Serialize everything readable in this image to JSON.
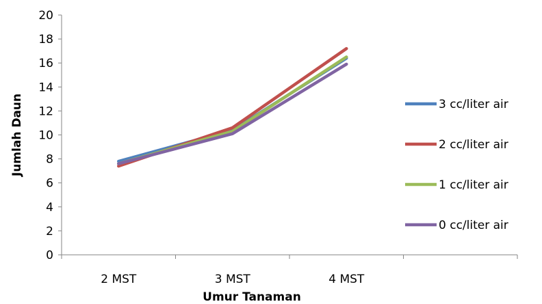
{
  "chart_data": {
    "type": "line",
    "title": "",
    "xlabel": "Umur Tanaman",
    "ylabel": "Jumlah Daun",
    "categories": [
      "2 MST",
      "3 MST",
      "4 MST"
    ],
    "ylim": [
      0,
      20
    ],
    "yticks": [
      0,
      2,
      4,
      6,
      8,
      10,
      12,
      14,
      16,
      18,
      20
    ],
    "grid": false,
    "legend_position": "right",
    "series": [
      {
        "name": "3 cc/liter air",
        "color": "#4f81bd",
        "values": [
          7.8,
          10.4,
          16.4
        ]
      },
      {
        "name": "2 cc/liter air",
        "color": "#c0504d",
        "values": [
          7.4,
          10.6,
          17.2
        ]
      },
      {
        "name": "1 cc/liter air",
        "color": "#9bbb59",
        "values": [
          7.6,
          10.3,
          16.5
        ]
      },
      {
        "name": "0 cc/liter air",
        "color": "#8064a2",
        "values": [
          7.6,
          10.1,
          15.9
        ]
      }
    ]
  }
}
